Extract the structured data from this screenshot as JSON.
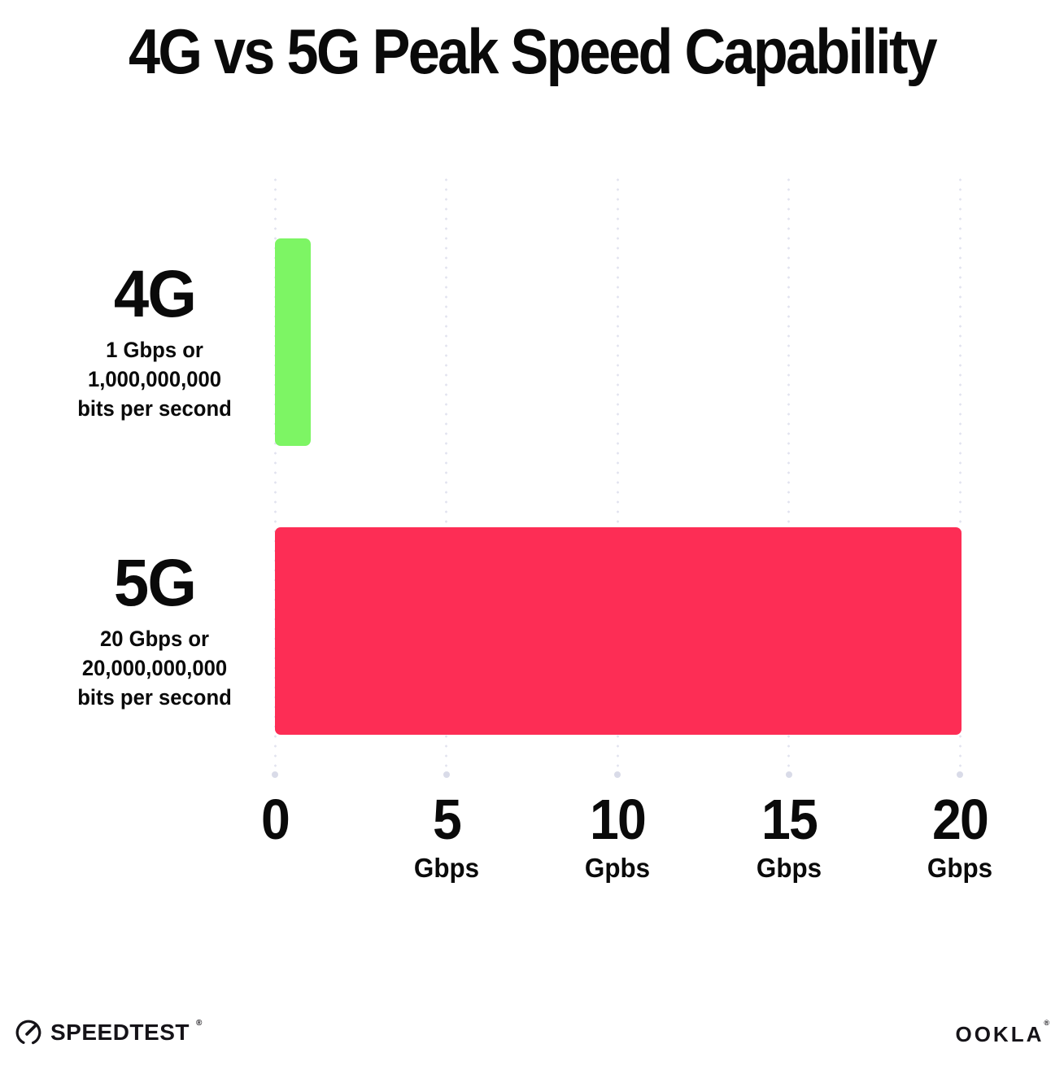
{
  "title": "4G vs 5G Peak Speed Capability",
  "chart_data": {
    "type": "bar",
    "orientation": "horizontal",
    "title": "4G vs 5G Peak Speed Capability",
    "categories": [
      "4G",
      "5G"
    ],
    "values": [
      1,
      20
    ],
    "xlim": [
      0,
      20
    ],
    "grid": "dotted-vertical-gridlines",
    "legend": "none",
    "bars": [
      {
        "label": "4G",
        "value": 1,
        "color": "#7DF564",
        "sublabel_lines": [
          "1 Gbps or",
          "1,000,000,000",
          "bits per second"
        ]
      },
      {
        "label": "5G",
        "value": 20,
        "color": "#FD2D55",
        "sublabel_lines": [
          "20 Gbps or",
          "20,000,000,000",
          "bits per second"
        ]
      }
    ],
    "x_ticks": [
      {
        "value": 0,
        "label": "0",
        "unit": ""
      },
      {
        "value": 5,
        "label": "5",
        "unit": "Gbps"
      },
      {
        "value": 10,
        "label": "10",
        "unit": "Gpbs"
      },
      {
        "value": 15,
        "label": "15",
        "unit": "Gbps"
      },
      {
        "value": 20,
        "label": "20",
        "unit": "Gbps"
      }
    ]
  },
  "footer": {
    "speedtest_label": "SPEEDTEST",
    "speedtest_mark": "®",
    "ookla_label": "OOKLA",
    "ookla_mark": "®",
    "gauge_icon": "speedometer-gauge"
  },
  "colors": {
    "background": "#FFFFFF",
    "text": "#0A0A0A",
    "bar_4g": "#7DF564",
    "bar_5g": "#FD2D55",
    "grid_dot": "#E2E3EF",
    "grid_end_dot": "#D9DBE8"
  }
}
